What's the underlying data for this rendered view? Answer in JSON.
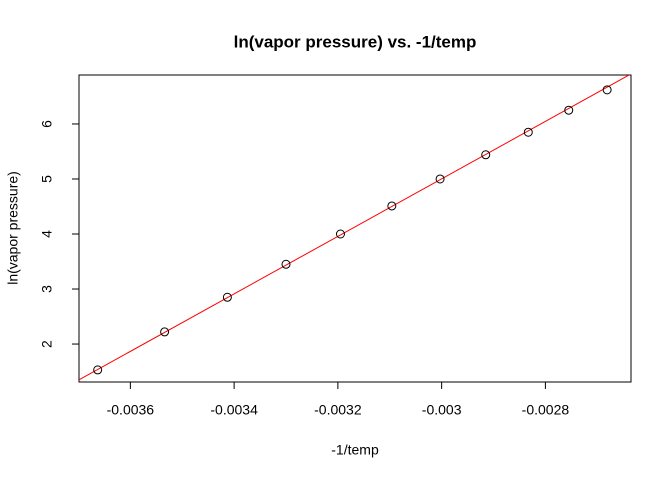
{
  "chart_data": {
    "type": "scatter",
    "title": "ln(vapor pressure) vs. -1/temp",
    "x_label": "-1/temp",
    "y_label": "ln(vapor pressure)",
    "series": [
      {
        "color": "#000000",
        "x": [
          -0.003663,
          -0.003534,
          -0.003413,
          -0.0033,
          -0.003195,
          -0.003096,
          -0.003003,
          -0.002915,
          -0.002833,
          -0.002755,
          -0.002681
        ],
        "values": [
          1.53,
          2.22,
          2.85,
          3.45,
          4.0,
          4.51,
          5.0,
          5.44,
          5.85,
          6.25,
          6.62
        ]
      }
    ],
    "fit": {
      "intercept": 20.68,
      "slope": 5226,
      "color": "#ff0000"
    },
    "xlim": [
      -0.003699,
      -0.002635
    ],
    "ylim": [
      1.31,
      6.89
    ],
    "xticks": [
      -0.0036,
      -0.0034,
      -0.0032,
      -0.003,
      -0.0028
    ],
    "yticks": [
      2,
      3,
      4,
      5,
      6
    ]
  }
}
